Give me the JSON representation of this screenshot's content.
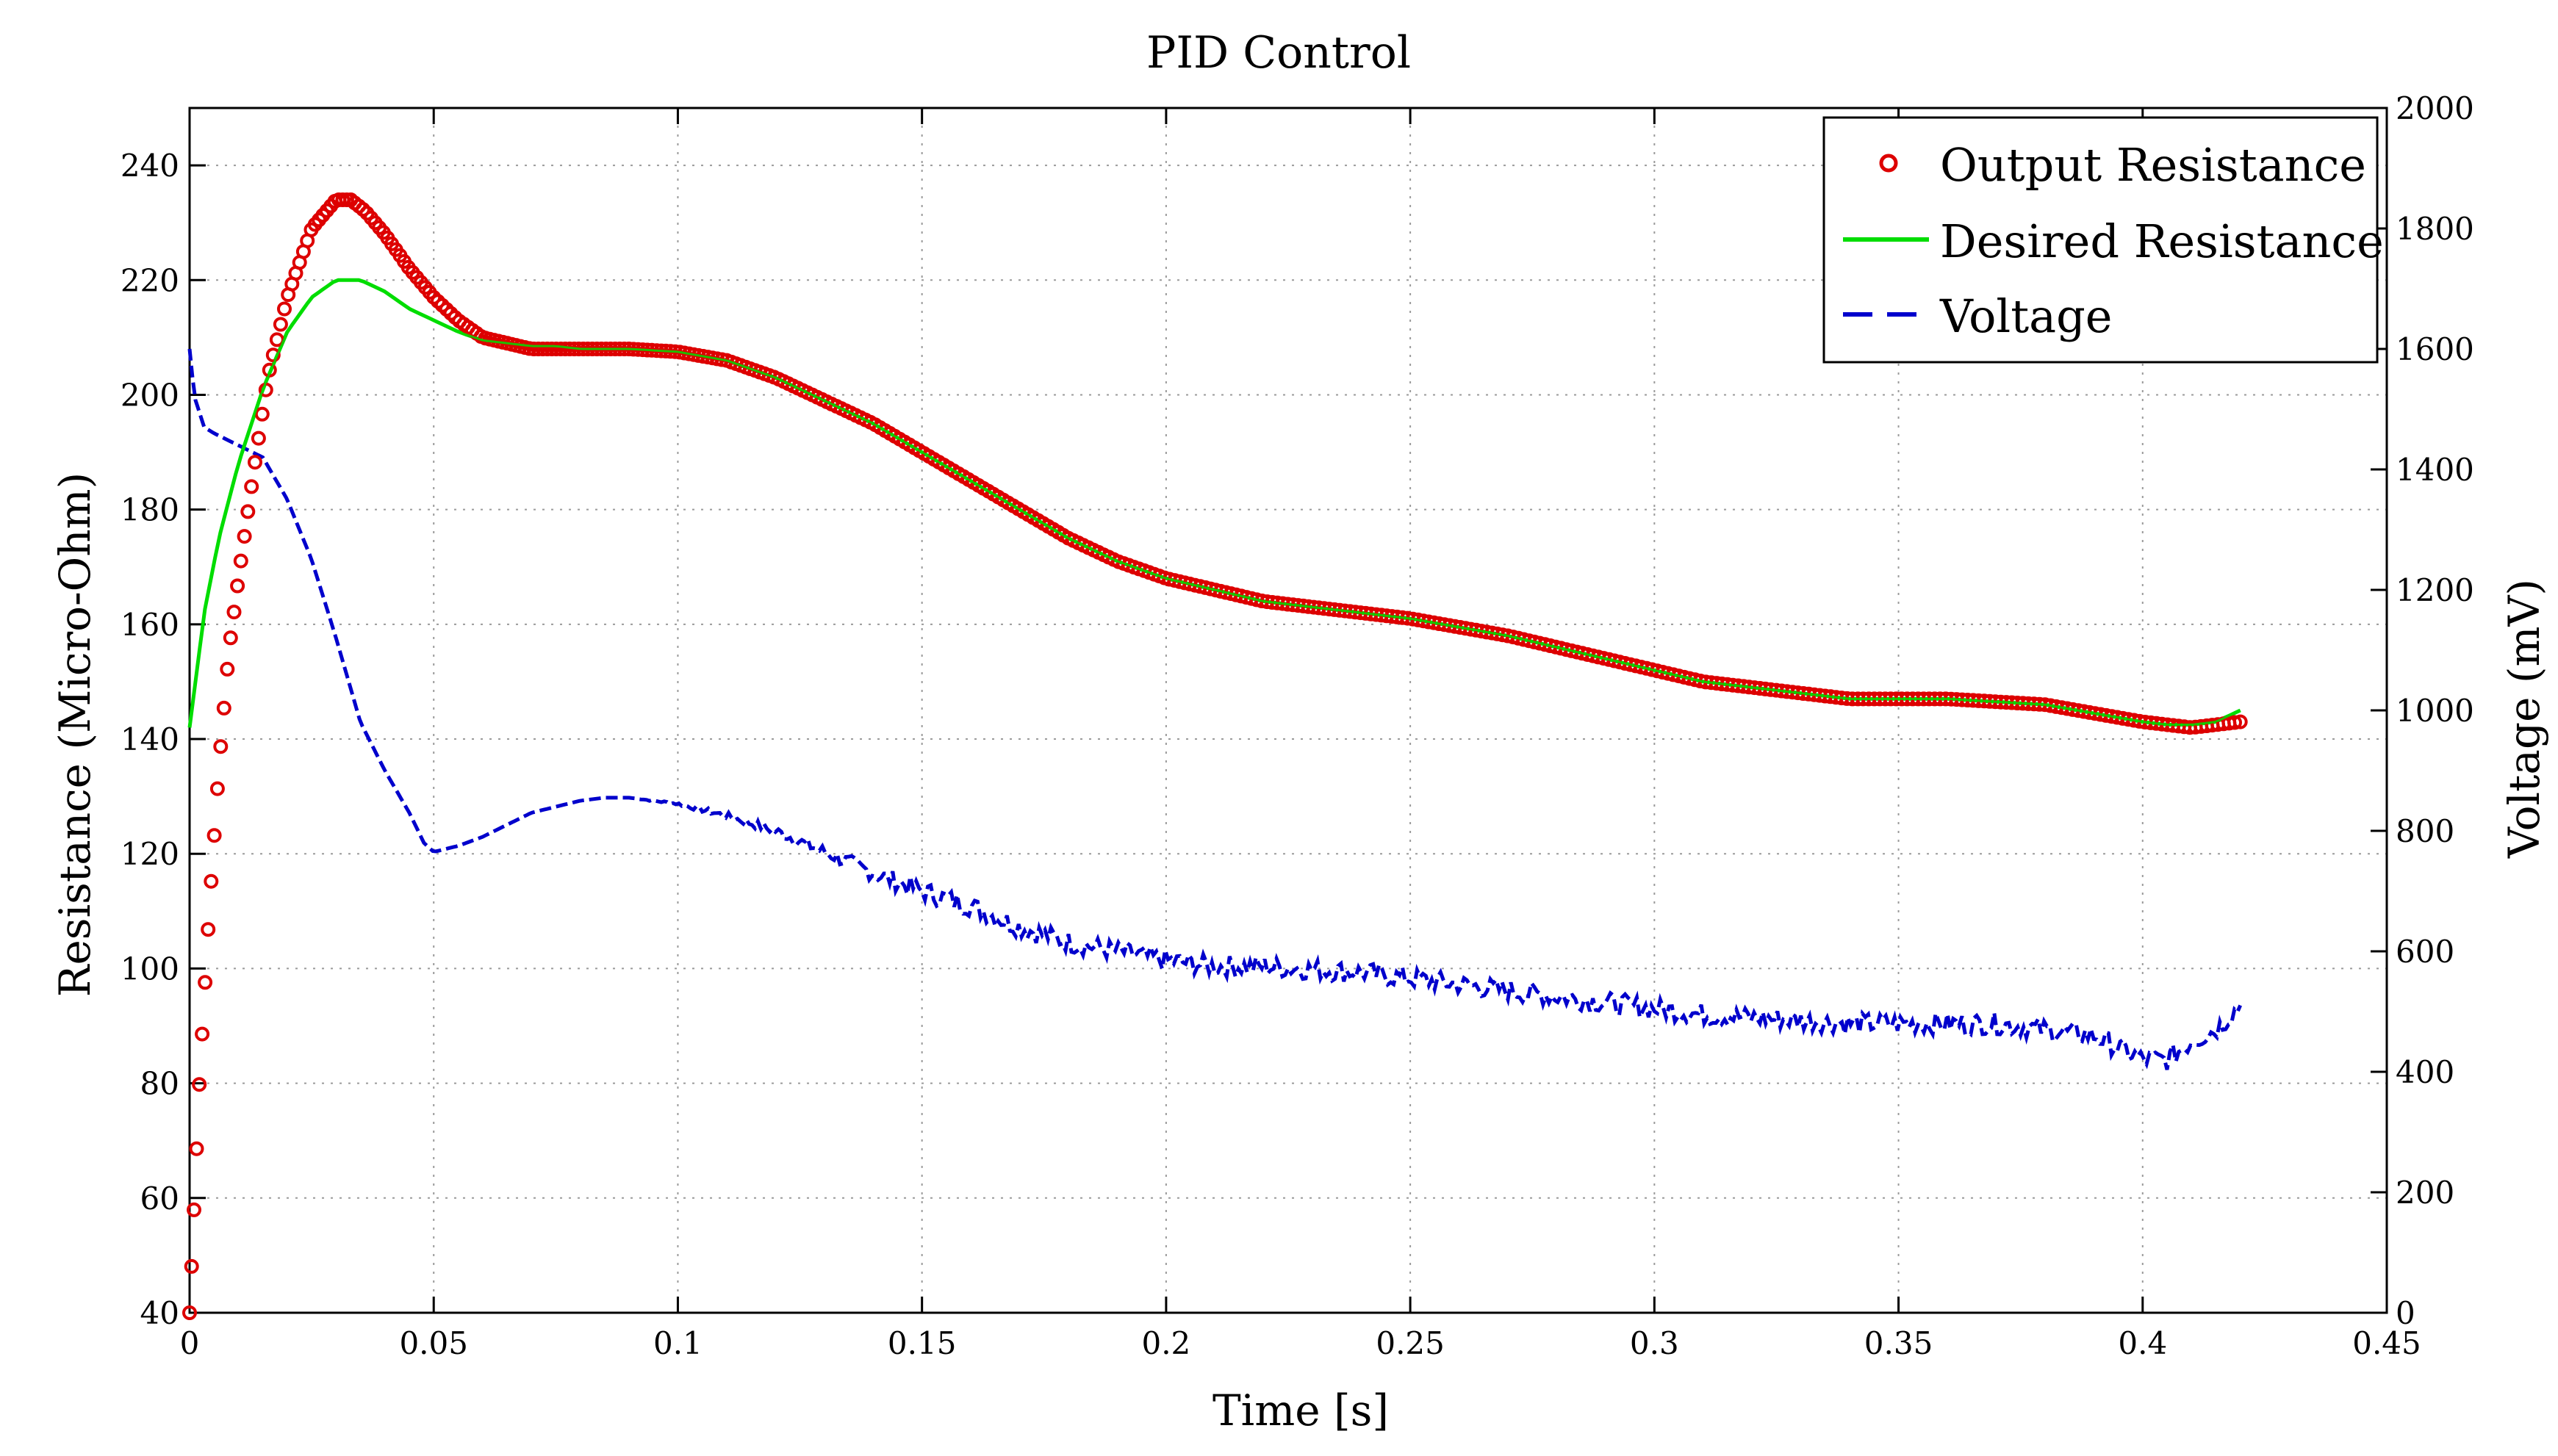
{
  "chart_data": {
    "type": "line",
    "title": "PID Control",
    "xlabel": "Time [s]",
    "ylabel": "Resistance (Micro-Ohm)",
    "y2label": "Voltage (mV)",
    "xlim": [
      0,
      0.45
    ],
    "ylim": [
      40,
      250
    ],
    "y2lim": [
      0,
      2000
    ],
    "x_ticks": [
      0,
      0.05,
      0.1,
      0.15,
      0.2,
      0.25,
      0.3,
      0.35,
      0.4,
      0.45
    ],
    "x_tick_labels": [
      "0",
      "0.05",
      "0.1",
      "0.15",
      "0.2",
      "0.25",
      "0.3",
      "0.35",
      "0.4",
      "0.45"
    ],
    "y_ticks": [
      40,
      60,
      80,
      100,
      120,
      140,
      160,
      180,
      200,
      220,
      240
    ],
    "y_tick_labels": [
      "40",
      "60",
      "80",
      "100",
      "120",
      "140",
      "160",
      "180",
      "200",
      "220",
      "240"
    ],
    "y2_ticks": [
      0,
      200,
      400,
      600,
      800,
      1000,
      1200,
      1400,
      1600,
      1800,
      2000
    ],
    "y2_tick_labels": [
      "0",
      "200",
      "400",
      "600",
      "800",
      "1000",
      "1200",
      "1400",
      "1600",
      "1800",
      "2000"
    ],
    "grid": true,
    "legend_position": "top-right",
    "series": [
      {
        "name": "Output Resistance",
        "axis": "left",
        "style": "circle-markers",
        "color": "#dd0000",
        "x": [
          0,
          0.002,
          0.004,
          0.006,
          0.008,
          0.01,
          0.013,
          0.016,
          0.02,
          0.025,
          0.03,
          0.033,
          0.036,
          0.04,
          0.045,
          0.05,
          0.055,
          0.06,
          0.065,
          0.07,
          0.075,
          0.08,
          0.09,
          0.1,
          0.11,
          0.12,
          0.13,
          0.14,
          0.15,
          0.16,
          0.17,
          0.18,
          0.19,
          0.2,
          0.21,
          0.22,
          0.23,
          0.24,
          0.25,
          0.26,
          0.27,
          0.28,
          0.29,
          0.3,
          0.31,
          0.32,
          0.33,
          0.34,
          0.35,
          0.36,
          0.37,
          0.38,
          0.39,
          0.4,
          0.405,
          0.41,
          0.415,
          0.42
        ],
        "y": [
          40,
          80,
          110,
          135,
          155,
          168,
          186,
          203,
          217,
          229,
          234,
          234,
          232,
          228,
          222,
          217,
          213,
          210,
          209,
          208,
          208,
          208,
          208,
          207.5,
          206,
          203,
          199,
          195,
          190,
          185,
          180,
          175,
          171,
          168,
          166,
          164,
          163,
          162,
          161,
          159.5,
          158,
          156,
          154,
          152,
          150,
          149,
          148,
          147,
          147,
          147,
          146.5,
          146,
          144.5,
          143,
          142.5,
          142,
          142.5,
          143
        ]
      },
      {
        "name": "Desired Resistance",
        "axis": "left",
        "style": "solid-line",
        "color": "#00dd00",
        "x": [
          0,
          0.003,
          0.006,
          0.01,
          0.015,
          0.02,
          0.025,
          0.03,
          0.035,
          0.04,
          0.045,
          0.05,
          0.055,
          0.06,
          0.065,
          0.07,
          0.075,
          0.08,
          0.09,
          0.1,
          0.11,
          0.12,
          0.13,
          0.14,
          0.15,
          0.16,
          0.17,
          0.18,
          0.19,
          0.2,
          0.21,
          0.22,
          0.23,
          0.24,
          0.25,
          0.26,
          0.27,
          0.28,
          0.29,
          0.3,
          0.31,
          0.32,
          0.33,
          0.34,
          0.35,
          0.36,
          0.37,
          0.38,
          0.39,
          0.4,
          0.405,
          0.41,
          0.415,
          0.42
        ],
        "y": [
          142,
          162,
          175,
          188,
          201,
          211,
          217,
          220,
          220,
          218,
          215,
          213,
          211,
          209.5,
          209,
          208.5,
          208.5,
          208,
          208,
          207.5,
          206,
          203,
          199,
          195,
          190,
          185,
          180,
          175,
          171,
          168,
          166,
          164,
          163,
          162,
          161,
          159.5,
          158,
          156,
          154,
          152,
          150,
          149,
          148,
          147,
          147,
          147,
          146.5,
          146,
          144.5,
          143,
          142.5,
          142.5,
          143,
          145
        ]
      },
      {
        "name": "Voltage",
        "axis": "right",
        "style": "dashed-line",
        "color": "#0000cc",
        "x": [
          0,
          0.001,
          0.003,
          0.005,
          0.01,
          0.015,
          0.02,
          0.025,
          0.03,
          0.035,
          0.04,
          0.045,
          0.048,
          0.05,
          0.055,
          0.06,
          0.065,
          0.07,
          0.075,
          0.08,
          0.085,
          0.09,
          0.095,
          0.1,
          0.11,
          0.12,
          0.13,
          0.14,
          0.15,
          0.16,
          0.17,
          0.18,
          0.19,
          0.2,
          0.21,
          0.22,
          0.23,
          0.24,
          0.25,
          0.26,
          0.27,
          0.28,
          0.29,
          0.3,
          0.31,
          0.32,
          0.33,
          0.34,
          0.35,
          0.36,
          0.37,
          0.38,
          0.39,
          0.4,
          0.405,
          0.41,
          0.415,
          0.42
        ],
        "y": [
          1600,
          1520,
          1470,
          1460,
          1440,
          1420,
          1350,
          1250,
          1120,
          980,
          900,
          830,
          780,
          765,
          775,
          790,
          810,
          830,
          840,
          850,
          855,
          855,
          850,
          845,
          825,
          800,
          765,
          730,
          700,
          675,
          640,
          615,
          600,
          585,
          575,
          575,
          570,
          565,
          555,
          545,
          535,
          525,
          515,
          505,
          495,
          490,
          485,
          480,
          480,
          480,
          480,
          470,
          460,
          420,
          420,
          450,
          470,
          510
        ]
      }
    ]
  }
}
